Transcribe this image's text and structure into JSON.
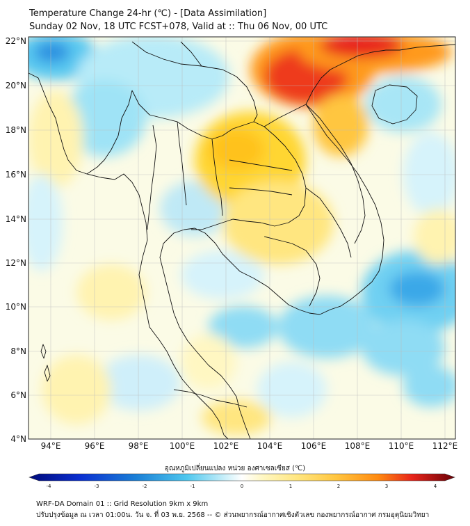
{
  "header": {
    "title": "Temperature Change 24-hr (℃) - [Data Assimilation]",
    "subtitle": "Sunday 02 Nov, 18 UTC FCST+078, Valid at :: Thu 06 Nov, 00 UTC"
  },
  "map": {
    "lon_range": [
      93,
      112.5
    ],
    "lat_range": [
      4,
      22.2
    ],
    "lon_ticks": [
      "94°E",
      "96°E",
      "98°E",
      "100°E",
      "102°E",
      "104°E",
      "106°E",
      "108°E",
      "110°E",
      "112°E"
    ],
    "lat_ticks": [
      "22°N",
      "20°N",
      "18°N",
      "16°N",
      "14°N",
      "12°N",
      "10°N",
      "8°N",
      "6°N",
      "4°N"
    ],
    "grid": true,
    "field_description_colors": {
      "cold_strong": "#1a7fd6",
      "cold": "#5fd0f0",
      "neutral": "#ffffff",
      "warm": "#ffe680",
      "hot": "#ffb000",
      "very_hot": "#e8241a"
    }
  },
  "colorbar": {
    "title": "อุณหภูมิเปลี่ยนแปลง หน่วย องศาเซลเซียส (℃)",
    "ticks": [
      "-4",
      "-3",
      "-2",
      "-1",
      "0",
      "1",
      "2",
      "3",
      "4"
    ],
    "min": -4,
    "max": 4
  },
  "footer": {
    "line1": "WRF-DA Domain 01 :: Grid Resolution 9km x 9km",
    "line2": "ปรับปรุงข้อมูล ณ เวลา 01:00น. วัน จ. ที่ 03 พ.ย. 2568 -- © ส่วนพยากรณ์อากาศเชิงตัวเลข กองพยากรณ์อากาศ กรมอุตุนิยมวิทยา"
  }
}
